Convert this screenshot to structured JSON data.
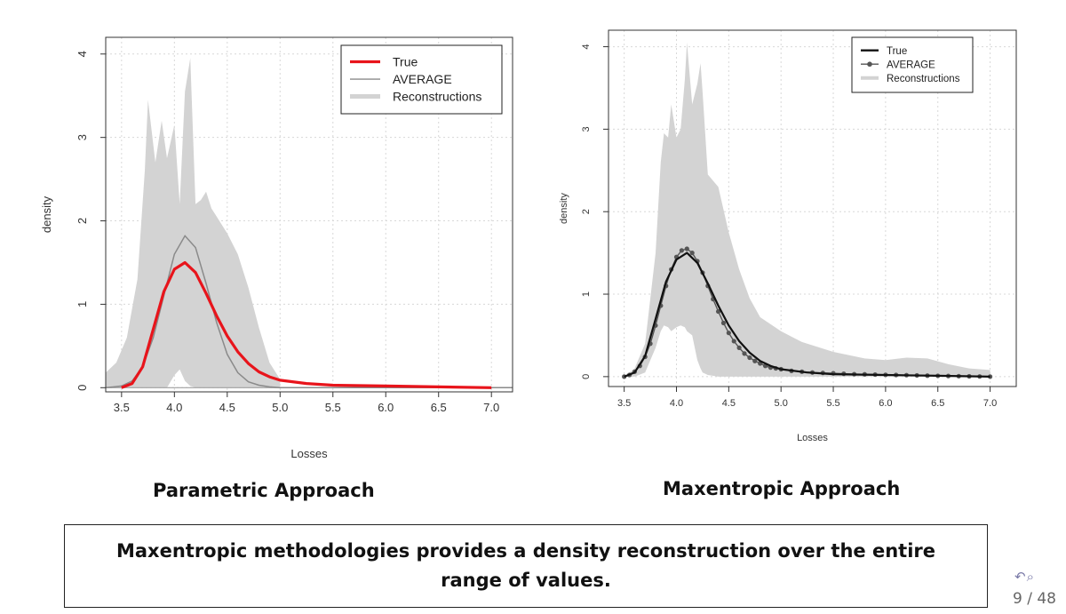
{
  "slide": {
    "left_caption": "Parametric Approach",
    "right_caption": "Maxentropic Approach",
    "conclusion": "Maxentropic methodologies provides a density reconstruction over the entire range of values.",
    "page_number": "9 / 48",
    "nav_icons": [
      "undo-icon",
      "search-icon"
    ]
  },
  "chart_data": [
    {
      "type": "line",
      "xlabel": "Losses",
      "ylabel": "density",
      "xlim": [
        3.35,
        7.2
      ],
      "ylim": [
        -0.05,
        4.2
      ],
      "xticks": [
        3.5,
        4.0,
        4.5,
        5.0,
        5.5,
        6.0,
        6.5,
        7.0
      ],
      "xtick_labels": [
        "3.5",
        "4.0",
        "4.5",
        "5.0",
        "5.5",
        "6.0",
        "6.5",
        "7.0"
      ],
      "yticks": [
        0,
        1,
        2,
        3,
        4
      ],
      "ytick_labels": [
        "0",
        "1",
        "2",
        "3",
        "4"
      ],
      "grid": true,
      "legend_position": "top-right",
      "legend": [
        "True",
        "AVERAGE",
        "Reconstructions"
      ],
      "colors": {
        "true": "#e8141b",
        "average": "#8a8a8a",
        "band": "#d3d3d3"
      },
      "series": [
        {
          "name": "True",
          "x": [
            3.5,
            3.6,
            3.7,
            3.8,
            3.9,
            4.0,
            4.1,
            4.2,
            4.3,
            4.4,
            4.5,
            4.6,
            4.7,
            4.8,
            4.9,
            5.0,
            5.25,
            5.5,
            6.0,
            6.5,
            7.0
          ],
          "values": [
            0.0,
            0.05,
            0.25,
            0.7,
            1.15,
            1.42,
            1.5,
            1.38,
            1.13,
            0.86,
            0.62,
            0.43,
            0.29,
            0.19,
            0.13,
            0.09,
            0.05,
            0.03,
            0.02,
            0.01,
            0.0
          ]
        },
        {
          "name": "AVERAGE",
          "x": [
            3.35,
            3.5,
            3.6,
            3.7,
            3.8,
            3.9,
            4.0,
            4.1,
            4.2,
            4.3,
            4.4,
            4.5,
            4.6,
            4.7,
            4.8,
            4.9,
            5.0,
            5.5,
            7.2
          ],
          "values": [
            0.0,
            0.02,
            0.08,
            0.25,
            0.6,
            1.1,
            1.6,
            1.82,
            1.68,
            1.25,
            0.78,
            0.4,
            0.18,
            0.07,
            0.03,
            0.01,
            0.0,
            0.0,
            0.0
          ]
        },
        {
          "name": "Reconstructions",
          "x": [
            3.35,
            3.45,
            3.55,
            3.65,
            3.72,
            3.75,
            3.82,
            3.88,
            3.93,
            4.0,
            4.05,
            4.1,
            4.15,
            4.2,
            4.25,
            4.3,
            4.35,
            4.4,
            4.5,
            4.6,
            4.7,
            4.8,
            4.9,
            5.0
          ],
          "upper": [
            0.18,
            0.3,
            0.6,
            1.3,
            2.6,
            3.45,
            2.7,
            3.2,
            2.75,
            3.15,
            2.2,
            3.55,
            3.95,
            2.2,
            2.25,
            2.35,
            2.15,
            2.05,
            1.85,
            1.6,
            1.2,
            0.72,
            0.3,
            0.1
          ],
          "lower": [
            0.0,
            0.0,
            0.0,
            0.0,
            0.0,
            0.0,
            0.0,
            0.0,
            0.0,
            0.15,
            0.22,
            0.08,
            0.02,
            0.0,
            0.0,
            0.0,
            0.0,
            0.0,
            0.0,
            0.0,
            0.0,
            0.0,
            0.0,
            0.0
          ]
        }
      ]
    },
    {
      "type": "line",
      "xlabel": "Losses",
      "ylabel": "density",
      "xlim": [
        3.35,
        7.25
      ],
      "ylim": [
        -0.12,
        4.2
      ],
      "xticks": [
        3.5,
        4.0,
        4.5,
        5.0,
        5.5,
        6.0,
        6.5,
        7.0
      ],
      "xtick_labels": [
        "3.5",
        "4.0",
        "4.5",
        "5.0",
        "5.5",
        "6.0",
        "6.5",
        "7.0"
      ],
      "yticks": [
        0,
        1,
        2,
        3,
        4
      ],
      "ytick_labels": [
        "0",
        "1",
        "2",
        "3",
        "4"
      ],
      "grid": true,
      "legend_position": "top-right",
      "legend": [
        "True",
        "AVERAGE",
        "Reconstructions"
      ],
      "colors": {
        "true": "#111111",
        "average": "#555555",
        "band": "#d3d3d3"
      },
      "series": [
        {
          "name": "True",
          "x": [
            3.5,
            3.6,
            3.7,
            3.8,
            3.9,
            4.0,
            4.1,
            4.2,
            4.3,
            4.4,
            4.5,
            4.6,
            4.7,
            4.8,
            4.9,
            5.0,
            5.25,
            5.5,
            6.0,
            6.5,
            7.0
          ],
          "values": [
            0.0,
            0.05,
            0.25,
            0.7,
            1.15,
            1.42,
            1.5,
            1.38,
            1.13,
            0.86,
            0.62,
            0.43,
            0.29,
            0.19,
            0.13,
            0.09,
            0.05,
            0.03,
            0.02,
            0.01,
            0.0
          ]
        },
        {
          "name": "AVERAGE",
          "x": [
            3.5,
            3.55,
            3.6,
            3.65,
            3.7,
            3.75,
            3.8,
            3.85,
            3.9,
            3.95,
            4.0,
            4.05,
            4.1,
            4.15,
            4.2,
            4.25,
            4.3,
            4.35,
            4.4,
            4.45,
            4.5,
            4.55,
            4.6,
            4.65,
            4.7,
            4.75,
            4.8,
            4.85,
            4.9,
            4.95,
            5.0,
            5.1,
            5.2,
            5.3,
            5.4,
            5.5,
            5.6,
            5.7,
            5.8,
            5.9,
            6.0,
            6.1,
            6.2,
            6.3,
            6.4,
            6.5,
            6.6,
            6.7,
            6.8,
            6.9,
            7.0
          ],
          "values": [
            0.0,
            0.02,
            0.06,
            0.13,
            0.24,
            0.4,
            0.62,
            0.86,
            1.1,
            1.3,
            1.45,
            1.53,
            1.55,
            1.5,
            1.4,
            1.26,
            1.1,
            0.94,
            0.79,
            0.65,
            0.53,
            0.43,
            0.35,
            0.28,
            0.23,
            0.19,
            0.16,
            0.13,
            0.11,
            0.1,
            0.09,
            0.07,
            0.06,
            0.05,
            0.045,
            0.04,
            0.035,
            0.03,
            0.028,
            0.025,
            0.022,
            0.02,
            0.018,
            0.015,
            0.012,
            0.01,
            0.008,
            0.006,
            0.004,
            0.002,
            0.0
          ]
        },
        {
          "name": "Reconstructions",
          "x": [
            3.5,
            3.6,
            3.7,
            3.8,
            3.85,
            3.88,
            3.92,
            3.95,
            4.0,
            4.04,
            4.08,
            4.1,
            4.15,
            4.2,
            4.23,
            4.25,
            4.3,
            4.4,
            4.5,
            4.6,
            4.7,
            4.8,
            5.0,
            5.2,
            5.5,
            5.8,
            6.0,
            6.2,
            6.4,
            6.6,
            6.8,
            7.0
          ],
          "upper": [
            0.0,
            0.1,
            0.4,
            1.5,
            2.6,
            2.95,
            2.9,
            3.3,
            2.9,
            3.0,
            3.6,
            4.05,
            3.3,
            3.55,
            3.8,
            3.45,
            2.45,
            2.3,
            1.75,
            1.3,
            0.95,
            0.72,
            0.55,
            0.42,
            0.3,
            0.22,
            0.2,
            0.23,
            0.22,
            0.15,
            0.1,
            0.08
          ],
          "lower": [
            0.0,
            0.0,
            0.05,
            0.35,
            0.55,
            0.62,
            0.6,
            0.55,
            0.6,
            0.62,
            0.6,
            0.55,
            0.5,
            0.2,
            0.1,
            0.05,
            0.02,
            0.0,
            0.0,
            0.0,
            0.0,
            0.0,
            0.0,
            0.0,
            0.0,
            0.0,
            0.0,
            0.0,
            0.0,
            0.0,
            0.0,
            0.0
          ]
        }
      ]
    }
  ]
}
